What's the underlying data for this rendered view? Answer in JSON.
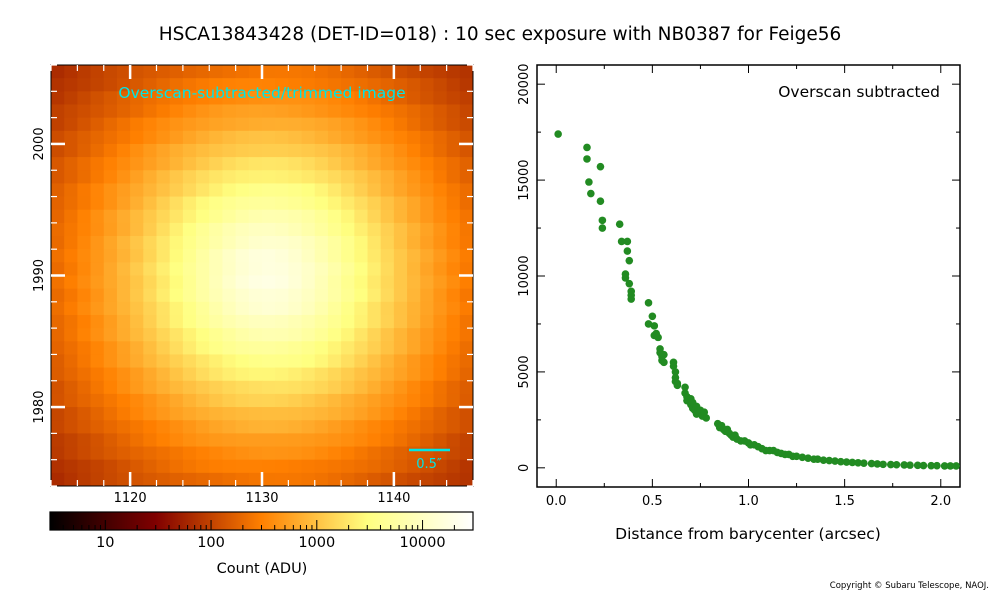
{
  "title": "HSCA13843428 (DET-ID=018) :  10 sec exposure with NB0387 for Feige56",
  "copyright": "Copyright © Subaru Telescope, NAOJ.",
  "colors": {
    "marker": "#228B22",
    "annotation": "#00e5e5",
    "frame": "#000000"
  },
  "chart_data": [
    {
      "type": "heatmap",
      "annotation": "Overscan-subtracted/trimmed image",
      "scale_bar_label": "0.5″",
      "colormap": "afmhot",
      "x_ticks": [
        1120,
        1130,
        1140
      ],
      "y_ticks": [
        1980,
        1990,
        2000
      ],
      "xlim": [
        1114,
        1146
      ],
      "ylim": [
        1974,
        2006
      ],
      "peak": {
        "x": 1130.5,
        "y": 1990,
        "value": 17500
      },
      "colorbar": {
        "label": "Count (ADU)",
        "scale": "log",
        "range": [
          3,
          30000
        ],
        "ticks": [
          {
            "value": 10,
            "label": "10"
          },
          {
            "value": 100,
            "label": "100"
          },
          {
            "value": 1000,
            "label": "1000"
          },
          {
            "value": 10000,
            "label": "10000"
          }
        ]
      }
    },
    {
      "type": "scatter",
      "annotation": "Overscan subtracted",
      "xlabel": "Distance from barycenter (arcsec)",
      "ylabel": "",
      "xlim": [
        -0.1,
        2.1
      ],
      "ylim": [
        -1000,
        21000
      ],
      "x_ticks": [
        {
          "value": 0.0,
          "label": "0.0"
        },
        {
          "value": 0.5,
          "label": "0.5"
        },
        {
          "value": 1.0,
          "label": "1.0"
        },
        {
          "value": 1.5,
          "label": "1.5"
        },
        {
          "value": 2.0,
          "label": "2.0"
        }
      ],
      "y_ticks": [
        {
          "value": 0,
          "label": "0"
        },
        {
          "value": 5000,
          "label": "5000"
        },
        {
          "value": 10000,
          "label": "10000"
        },
        {
          "value": 15000,
          "label": "15000"
        },
        {
          "value": 20000,
          "label": "20000"
        }
      ],
      "series": [
        {
          "x": [
            0.01,
            0.16,
            0.16,
            0.17,
            0.18,
            0.23,
            0.23,
            0.24,
            0.24,
            0.33,
            0.34,
            0.36,
            0.36,
            0.37,
            0.37,
            0.38,
            0.38,
            0.39,
            0.39,
            0.39,
            0.48,
            0.48,
            0.5,
            0.51,
            0.51,
            0.52,
            0.53,
            0.54,
            0.54,
            0.55,
            0.55,
            0.56,
            0.56,
            0.61,
            0.61,
            0.62,
            0.62,
            0.62,
            0.63,
            0.63,
            0.67,
            0.67,
            0.68,
            0.68,
            0.7,
            0.7,
            0.71,
            0.71,
            0.72,
            0.73,
            0.73,
            0.75,
            0.76,
            0.77,
            0.78,
            0.84,
            0.85,
            0.86,
            0.87,
            0.88,
            0.89,
            0.9,
            0.91,
            0.92,
            0.93,
            0.94,
            0.96,
            0.98,
            1.0,
            1.01,
            1.03,
            1.05,
            1.07,
            1.09,
            1.11,
            1.13,
            1.15,
            1.17,
            1.19,
            1.21,
            1.23,
            1.25,
            1.28,
            1.31,
            1.34,
            1.36,
            1.39,
            1.42,
            1.45,
            1.48,
            1.51,
            1.54,
            1.57,
            1.6,
            1.64,
            1.67,
            1.7,
            1.74,
            1.77,
            1.81,
            1.84,
            1.88,
            1.91,
            1.95,
            1.98,
            2.02,
            2.05,
            2.08
          ],
          "y": [
            17400,
            16700,
            16100,
            14900,
            14300,
            15700,
            13900,
            12900,
            12500,
            12700,
            11800,
            10100,
            9900,
            11800,
            11300,
            10800,
            9600,
            9200,
            9000,
            8800,
            8600,
            7500,
            7900,
            6900,
            7400,
            7000,
            6800,
            6200,
            6000,
            5800,
            5600,
            5900,
            5500,
            5500,
            5300,
            5000,
            4700,
            4500,
            4400,
            4300,
            4200,
            3900,
            3700,
            3500,
            3600,
            3300,
            3100,
            3400,
            3000,
            2800,
            3200,
            3000,
            2700,
            2900,
            2600,
            2300,
            2100,
            2200,
            2000,
            1900,
            2000,
            1800,
            1700,
            1600,
            1700,
            1500,
            1400,
            1400,
            1300,
            1200,
            1200,
            1100,
            1000,
            900,
            900,
            900,
            800,
            750,
            700,
            700,
            600,
            600,
            550,
            500,
            450,
            450,
            400,
            380,
            350,
            320,
            300,
            280,
            260,
            240,
            220,
            200,
            180,
            170,
            160,
            150,
            140,
            130,
            120,
            110,
            110,
            100,
            100,
            100
          ]
        }
      ]
    }
  ]
}
